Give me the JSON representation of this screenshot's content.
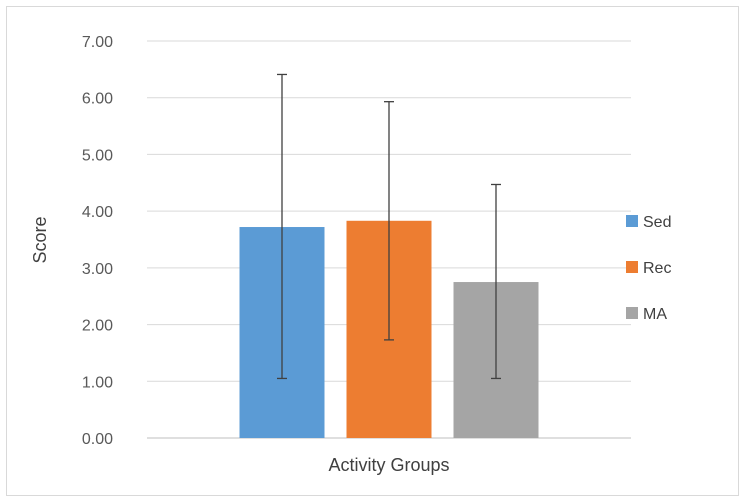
{
  "chart_data": {
    "type": "bar",
    "categories": [
      ""
    ],
    "series": [
      {
        "name": "Sed",
        "values": [
          3.72
        ],
        "error_low": [
          1.05
        ],
        "error_high": [
          6.41
        ],
        "color": "#5b9bd5"
      },
      {
        "name": "Rec",
        "values": [
          3.83
        ],
        "error_low": [
          1.73
        ],
        "error_high": [
          5.93
        ],
        "color": "#ed7d31"
      },
      {
        "name": "MA",
        "values": [
          2.75
        ],
        "error_low": [
          1.05
        ],
        "error_high": [
          4.47
        ],
        "color": "#a5a5a5"
      }
    ],
    "ylim": [
      0,
      7
    ],
    "yticks": [
      "0.00",
      "1.00",
      "2.00",
      "3.00",
      "4.00",
      "5.00",
      "6.00",
      "7.00"
    ],
    "xlabel": "Activity Groups",
    "ylabel": "Score",
    "grid": true,
    "legend_position": "right"
  }
}
